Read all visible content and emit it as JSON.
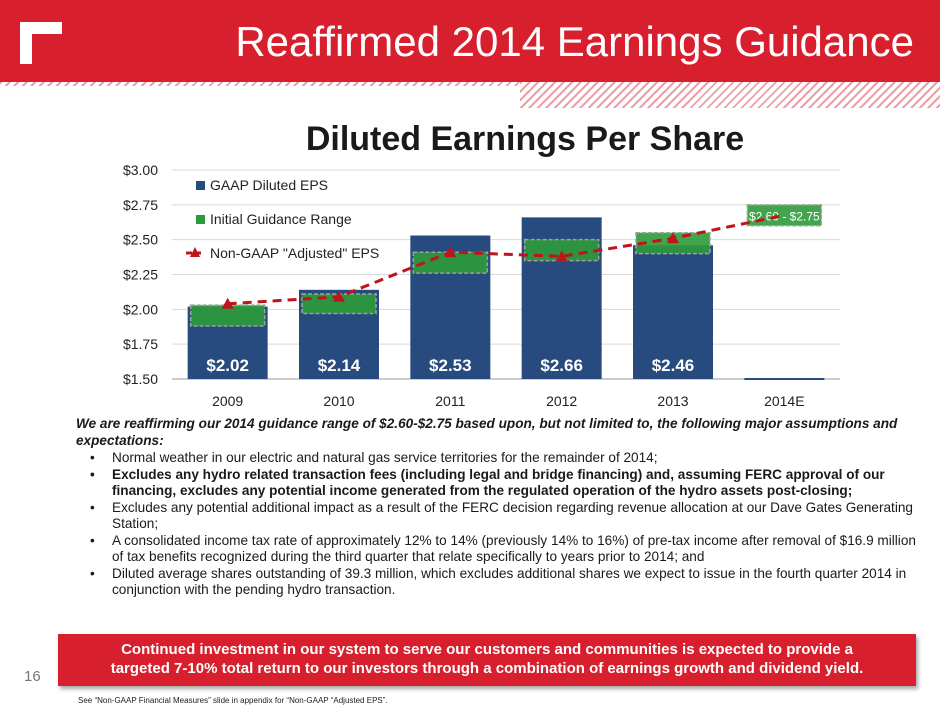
{
  "header": {
    "title": "Reaffirmed 2014 Earnings Guidance"
  },
  "colors": {
    "brand_red": "#d71f2d",
    "gaap_blue": "#274b7e",
    "guidance_green": "#2e9b3a",
    "adjusted_red": "#c0141c"
  },
  "chart_data": {
    "type": "bar",
    "title": "Diluted Earnings Per Share",
    "categories": [
      "2009",
      "2010",
      "2011",
      "2012",
      "2013",
      "2014E"
    ],
    "ylim": [
      1.5,
      3.0
    ],
    "yticks": [
      "$1.50",
      "$1.75",
      "$2.00",
      "$2.25",
      "$2.50",
      "$2.75",
      "$3.00"
    ],
    "ytick_values": [
      1.5,
      1.75,
      2.0,
      2.25,
      2.5,
      2.75,
      3.0
    ],
    "legend_position": "top-left",
    "series": [
      {
        "name": "GAAP Diluted EPS",
        "kind": "bar",
        "values": [
          2.02,
          2.14,
          2.53,
          2.66,
          2.46,
          null
        ],
        "labels": [
          "$2.02",
          "$2.14",
          "$2.53",
          "$2.66",
          "$2.46",
          ""
        ]
      },
      {
        "name": "Initial Guidance Range",
        "kind": "range",
        "low": [
          1.88,
          1.97,
          2.26,
          2.35,
          2.4,
          2.6
        ],
        "high": [
          2.03,
          2.11,
          2.41,
          2.5,
          2.55,
          2.75
        ],
        "range_label": "$2.60 - $2.75"
      },
      {
        "name": "Non-GAAP \"Adjusted\" EPS",
        "kind": "line",
        "values": [
          2.04,
          2.09,
          2.41,
          2.38,
          2.51,
          2.675
        ]
      }
    ]
  },
  "body": {
    "intro": "We are reaffirming our 2014 guidance range of $2.60-$2.75 based upon, but not limited to, the following major assumptions and expectations:",
    "bullets": [
      "Normal weather in our electric and natural gas service territories for the remainder of 2014;",
      "Excludes any hydro related transaction fees (including legal and bridge financing) and, assuming FERC approval of our financing, excludes any potential income generated from the regulated operation of the hydro assets post-closing;",
      "Excludes any potential additional impact as a result of the FERC decision regarding revenue allocation at our Dave Gates Generating Station;",
      "A consolidated income tax rate of approximately 12% to 14% (previously 14% to 16%) of pre-tax income after removal of $16.9 million of tax benefits recognized during the third quarter that relate specifically to years prior to 2014; and",
      "Diluted average shares outstanding of 39.3 million, which excludes additional shares we expect to issue in the fourth quarter 2014 in conjunction with the pending hydro transaction."
    ]
  },
  "callout": {
    "line1": "Continued investment in our system to serve our customers and communities is expected to provide a",
    "line2": "targeted 7-10% total return to our investors through a combination of earnings growth and dividend yield."
  },
  "footer": {
    "page_number": "16",
    "footnote": "See “Non-GAAP Financial Measures” slide in appendix for “Non-GAAP “Adjusted EPS”."
  }
}
